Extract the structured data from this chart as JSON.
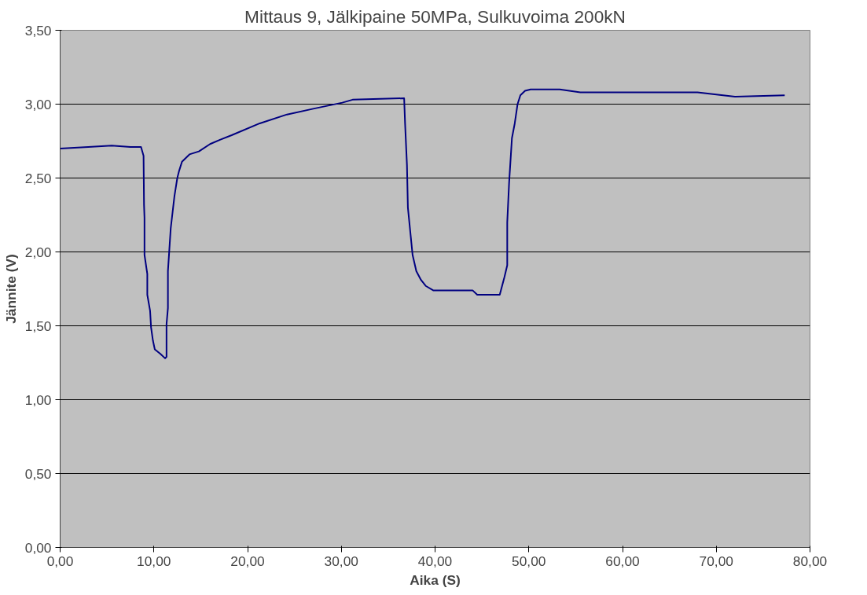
{
  "chart_data": {
    "type": "line",
    "title": "Mittaus 9, Jälkipaine 50MPa, Sulkuvoima 200kN",
    "xlabel": "Aika (S)",
    "ylabel": "Jännite (V)",
    "x": [
      0,
      3,
      5.5,
      7.5,
      8.63,
      8.9,
      8.95,
      9.0,
      9.0,
      9.3,
      9.3,
      9.6,
      9.7,
      9.9,
      10.1,
      10.7,
      11.2,
      11.35,
      11.35,
      11.5,
      11.5,
      11.8,
      12.0,
      12.2,
      12.5,
      12.7,
      13.0,
      13.8,
      14.8,
      16.0,
      17.1,
      18.3,
      21.3,
      24.2,
      27.1,
      30.1,
      31.2,
      36.7,
      36.8,
      37.0,
      37.1,
      37.6,
      38.0,
      38.5,
      39.0,
      39.8,
      44.0,
      44.5,
      46.9,
      47.4,
      47.7,
      47.7,
      47.9,
      48.2,
      48.5,
      48.8,
      49.1,
      49.6,
      50.2,
      53.3,
      55.5,
      68.0,
      72.0,
      77.3
    ],
    "series": [
      {
        "color": "#000080",
        "values": [
          2.7,
          2.71,
          2.72,
          2.71,
          2.71,
          2.65,
          2.32,
          2.23,
          1.98,
          1.85,
          1.71,
          1.6,
          1.49,
          1.4,
          1.34,
          1.31,
          1.28,
          1.29,
          1.51,
          1.62,
          1.87,
          2.16,
          2.27,
          2.38,
          2.5,
          2.55,
          2.61,
          2.66,
          2.68,
          2.73,
          2.76,
          2.79,
          2.87,
          2.93,
          2.97,
          3.01,
          3.03,
          3.04,
          2.87,
          2.59,
          2.3,
          1.98,
          1.87,
          1.81,
          1.77,
          1.74,
          1.74,
          1.71,
          1.71,
          1.83,
          1.91,
          2.2,
          2.47,
          2.77,
          2.87,
          3.0,
          3.06,
          3.09,
          3.1,
          3.1,
          3.08,
          3.08,
          3.05,
          3.06
        ]
      }
    ],
    "xlim": [
      0,
      80
    ],
    "ylim": [
      0,
      3.5
    ],
    "xticks": [
      {
        "value": 0,
        "label": "0,00"
      },
      {
        "value": 10,
        "label": "10,00"
      },
      {
        "value": 20,
        "label": "20,00"
      },
      {
        "value": 30,
        "label": "30,00"
      },
      {
        "value": 40,
        "label": "40,00"
      },
      {
        "value": 50,
        "label": "50,00"
      },
      {
        "value": 60,
        "label": "60,00"
      },
      {
        "value": 70,
        "label": "70,00"
      },
      {
        "value": 80,
        "label": "80,00"
      }
    ],
    "yticks": [
      {
        "value": 0,
        "label": "0,00"
      },
      {
        "value": 0.5,
        "label": "0,50"
      },
      {
        "value": 1,
        "label": "1,00"
      },
      {
        "value": 1.5,
        "label": "1,50"
      },
      {
        "value": 2,
        "label": "2,00"
      },
      {
        "value": 2.5,
        "label": "2,50"
      },
      {
        "value": 3,
        "label": "3,00"
      },
      {
        "value": 3.5,
        "label": "3,50"
      }
    ],
    "grid": "y",
    "line_style": "solid"
  }
}
